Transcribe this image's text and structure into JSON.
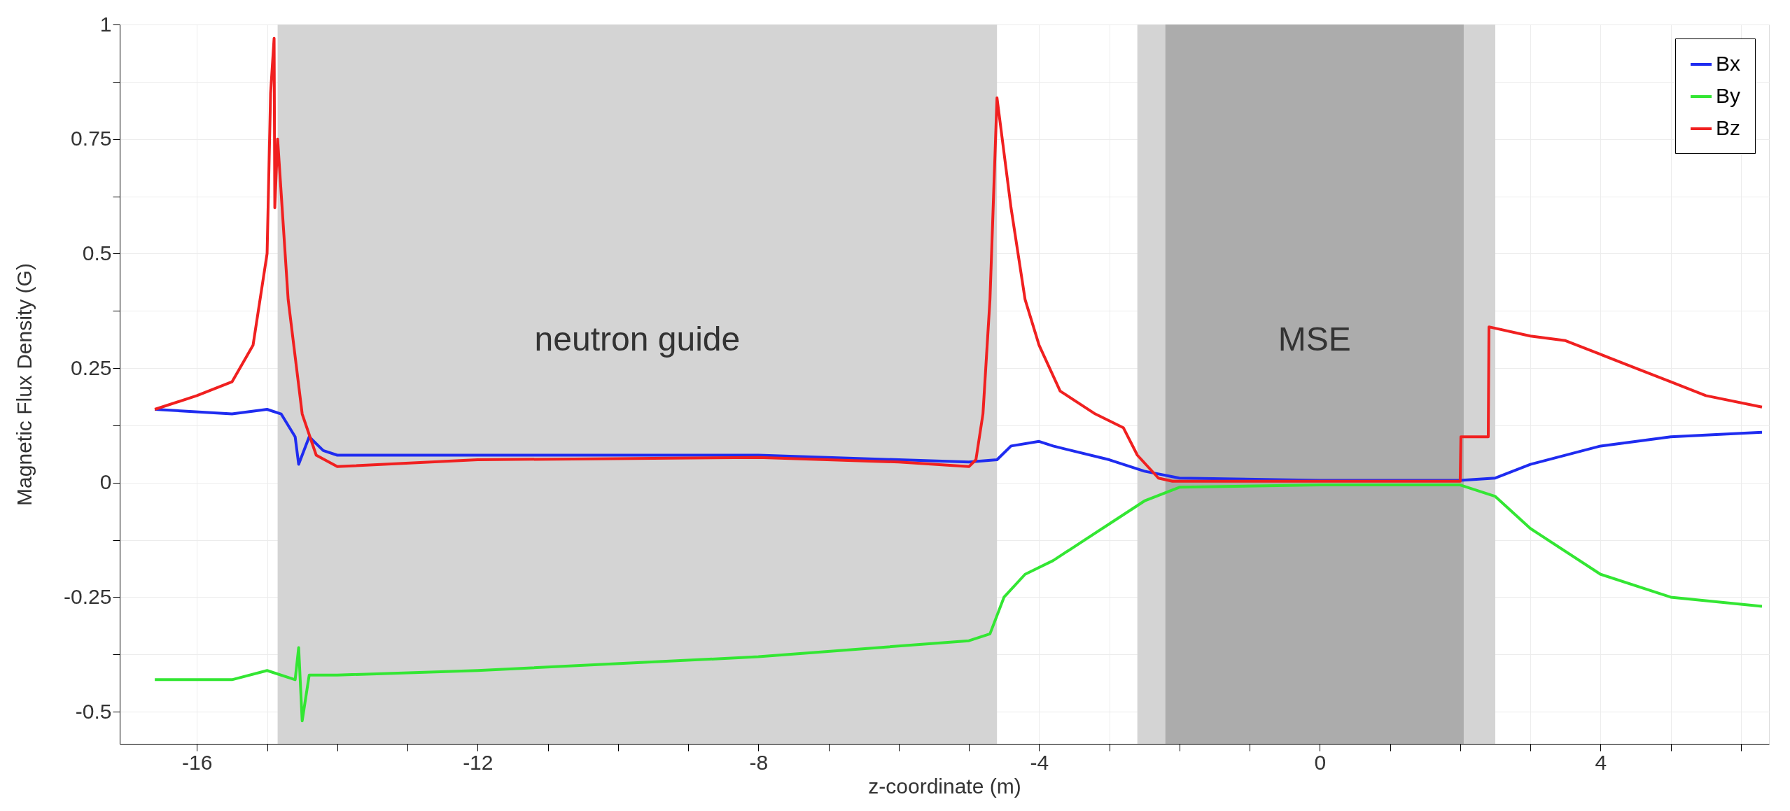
{
  "chart_data": {
    "type": "line",
    "xlabel": "z-coordinate (m)",
    "ylabel": "Magnetic Flux Density (G)",
    "xlim": [
      -17.1,
      6.4
    ],
    "ylim": [
      -0.57,
      1.0
    ],
    "xticks": [
      -16,
      {
        "value": -15,
        "label": null
      },
      {
        "value": -14,
        "label": null
      },
      {
        "value": -13,
        "label": null
      },
      -12,
      {
        "value": -11,
        "label": null
      },
      {
        "value": -10,
        "label": null
      },
      {
        "value": -9,
        "label": null
      },
      -8,
      {
        "value": -7,
        "label": null
      },
      {
        "value": -6,
        "label": null
      },
      {
        "value": -5,
        "label": null
      },
      -4,
      {
        "value": -3,
        "label": null
      },
      {
        "value": -2,
        "label": null
      },
      {
        "value": -1,
        "label": null
      },
      0,
      {
        "value": 1,
        "label": null
      },
      {
        "value": 2,
        "label": null
      },
      {
        "value": 3,
        "label": null
      },
      4,
      {
        "value": 5,
        "label": null
      },
      {
        "value": 6,
        "label": null
      }
    ],
    "yticks": [
      -0.5,
      {
        "value": -0.375,
        "label": null
      },
      -0.25,
      {
        "value": -0.125,
        "label": null
      },
      0,
      {
        "value": 0.125,
        "label": null
      },
      0.25,
      {
        "value": 0.375,
        "label": null
      },
      0.5,
      {
        "value": 0.625,
        "label": null
      },
      0.75,
      {
        "value": 0.875,
        "label": null
      },
      1
    ],
    "grid": true,
    "legend": "top right",
    "bands": [
      {
        "axis": "x",
        "from": -14.85,
        "to": -4.6,
        "label": "neutron guide",
        "color": "#d4d4d4"
      },
      {
        "axis": "x",
        "from": -2.6,
        "to": 2.5,
        "label": null,
        "color": "#d4d4d4"
      },
      {
        "axis": "x",
        "from": -2.2,
        "to": 2.05,
        "label": "MSE",
        "color": "#acacac"
      }
    ],
    "series": [
      {
        "name": "Bx",
        "color": "#1f2cf0",
        "x": [
          -16.6,
          -15.5,
          -15.0,
          -14.8,
          -14.6,
          -14.55,
          -14.4,
          -14.2,
          -14.0,
          -12.0,
          -8.0,
          -6.0,
          -5.0,
          -4.6,
          -4.4,
          -4.0,
          -3.8,
          -3.0,
          -2.5,
          -2.0,
          0.0,
          2.0,
          2.5,
          3.0,
          4.0,
          5.0,
          6.3
        ],
        "values": [
          0.16,
          0.15,
          0.16,
          0.15,
          0.1,
          0.04,
          0.1,
          0.07,
          0.06,
          0.06,
          0.06,
          0.05,
          0.045,
          0.05,
          0.08,
          0.09,
          0.08,
          0.05,
          0.025,
          0.01,
          0.005,
          0.005,
          0.01,
          0.04,
          0.08,
          0.1,
          0.11
        ]
      },
      {
        "name": "By",
        "color": "#33e633",
        "x": [
          -16.6,
          -15.5,
          -15.0,
          -14.6,
          -14.55,
          -14.5,
          -14.4,
          -14.0,
          -12.0,
          -8.0,
          -5.0,
          -4.7,
          -4.5,
          -4.2,
          -3.8,
          -3.0,
          -2.5,
          -2.0,
          0.0,
          2.0,
          2.5,
          3.0,
          4.0,
          5.0,
          6.3
        ],
        "values": [
          -0.43,
          -0.43,
          -0.41,
          -0.43,
          -0.36,
          -0.52,
          -0.42,
          -0.42,
          -0.41,
          -0.38,
          -0.345,
          -0.33,
          -0.25,
          -0.2,
          -0.17,
          -0.09,
          -0.04,
          -0.01,
          -0.005,
          -0.005,
          -0.03,
          -0.1,
          -0.2,
          -0.25,
          -0.27
        ]
      },
      {
        "name": "Bz",
        "color": "#f02020",
        "x": [
          -16.6,
          -16.0,
          -15.5,
          -15.2,
          -15.0,
          -14.95,
          -14.9,
          -14.89,
          -14.85,
          -14.7,
          -14.5,
          -14.3,
          -14.0,
          -12.0,
          -8.0,
          -6.0,
          -5.0,
          -4.9,
          -4.8,
          -4.7,
          -4.6,
          -4.4,
          -4.2,
          -4.0,
          -3.7,
          -3.2,
          -2.8,
          -2.6,
          -2.3,
          -2.1,
          0.0,
          2.0,
          2.01,
          2.4,
          2.41,
          3.0,
          3.5,
          4.0,
          4.5,
          5.0,
          5.5,
          6.3
        ],
        "values": [
          0.16,
          0.19,
          0.22,
          0.3,
          0.5,
          0.85,
          0.97,
          0.6,
          0.75,
          0.4,
          0.15,
          0.06,
          0.035,
          0.05,
          0.055,
          0.045,
          0.035,
          0.05,
          0.15,
          0.4,
          0.84,
          0.6,
          0.4,
          0.3,
          0.2,
          0.15,
          0.12,
          0.06,
          0.01,
          0.003,
          0.003,
          0.003,
          0.1,
          0.1,
          0.34,
          0.32,
          0.31,
          0.28,
          0.25,
          0.22,
          0.19,
          0.165
        ]
      }
    ]
  }
}
